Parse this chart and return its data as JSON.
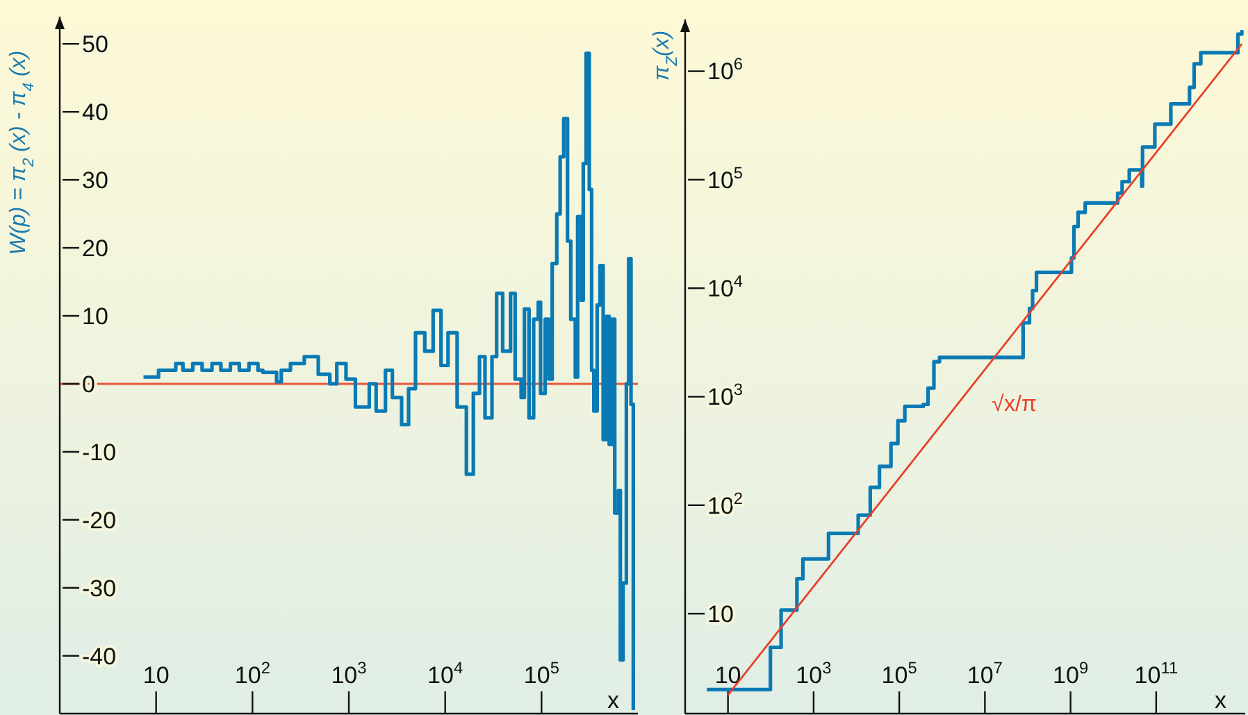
{
  "chart_data": [
    {
      "type": "step",
      "ylabel": "W(p) = π$_{2}$ (x) - π$_{4}$ (x)",
      "xlabel": "x",
      "log": "x",
      "grid": false,
      "marker": "none",
      "xlim": [
        1,
        1000000
      ],
      "ylim": [
        -48.5,
        54
      ],
      "xticks": [
        10,
        {
          "value": 100,
          "label": "10$^{2}$"
        },
        {
          "value": 1000,
          "label": "10$^{3}$"
        },
        {
          "value": 10000,
          "label": "10$^{4}$"
        },
        {
          "value": 100000,
          "label": "10$^{5}$"
        }
      ],
      "yticks": [
        -40,
        -30,
        -20,
        -10,
        0,
        10,
        20,
        30,
        40,
        50
      ],
      "ref_lines": [
        {
          "axis": "y",
          "value": 0,
          "color": "#e8553a"
        }
      ],
      "series": [
        {
          "color": "#0a7ab5",
          "x": [
            7.4,
            10.6,
            16,
            19,
            24,
            30,
            38,
            47,
            59,
            73,
            92,
            114,
            128,
            178,
            199,
            248,
            345,
            482,
            635,
            750,
            935,
            1170,
            1630,
            1920,
            2400,
            2830,
            3530,
            4170,
            4920,
            6140,
            7500,
            9050,
            10700,
            13300,
            16600,
            19600,
            22700,
            25900,
            30600,
            34200,
            39500,
            47700,
            53200,
            61400,
            66400,
            74200,
            82800,
            92500,
            97700,
            109000,
            119000,
            129000,
            144000,
            156000,
            170000,
            186000,
            201000,
            224000,
            237000,
            259000,
            271000,
            290000,
            313000,
            331000,
            349000,
            378000,
            404000,
            436000,
            471000,
            504000,
            544000,
            575000,
            628000,
            657000,
            702000,
            759000,
            802000,
            848000,
            896000
          ],
          "values": [
            1,
            2,
            3,
            2,
            3,
            2,
            3,
            2,
            3,
            2,
            3,
            2,
            1.7,
            0.3,
            2,
            3,
            4,
            1.4,
            0,
            3,
            0.7,
            -3.4,
            0,
            -4,
            2,
            -2,
            -6,
            -0.7,
            7.5,
            4.8,
            10.8,
            2.7,
            7.5,
            -3.4,
            -13.3,
            -1.4,
            4,
            -5,
            4,
            13.3,
            4.8,
            13.3,
            0.7,
            -2,
            11,
            -5,
            9.5,
            12,
            -1.4,
            9.5,
            0.7,
            17.7,
            25,
            33.4,
            39,
            21,
            9.5,
            1,
            24.6,
            12.3,
            32.4,
            48.6,
            28.6,
            2,
            -4,
            11.6,
            17.4,
            -8.2,
            9.9,
            -8.9,
            9.5,
            -19,
            -15.7,
            -40.6,
            -29.3,
            0,
            18.4,
            -3,
            -48
          ]
        }
      ]
    },
    {
      "type": "step",
      "ylabel": "π$_{Z}$(x)",
      "xlabel": "x",
      "log": "xy",
      "grid": false,
      "marker": "none",
      "xlim": [
        1,
        12000000000000
      ],
      "ylim": [
        1.2,
        3000000
      ],
      "xticks": [
        10,
        {
          "value": 1000,
          "label": "10$^{3}$"
        },
        {
          "value": 100000,
          "label": "10$^{5}$"
        },
        {
          "value": 10000000,
          "label": "10$^{7}$"
        },
        {
          "value": 1000000000,
          "label": "10$^{9}$"
        },
        {
          "value": 100000000000,
          "label": "10$^{11}$"
        }
      ],
      "yticks": [
        10,
        {
          "value": 100,
          "label": "10$^{2}$"
        },
        {
          "value": 1000,
          "label": "10$^{3}$"
        },
        {
          "value": 10000,
          "label": "10$^{4}$"
        },
        {
          "value": 100000,
          "label": "10$^{5}$"
        },
        {
          "value": 1000000,
          "label": "10$^{6}$"
        }
      ],
      "series": [
        {
          "color": "#0a7ab5",
          "x": [
            3.2,
            98,
            174,
            407,
            562,
            810,
            2230,
            11000,
            21000,
            34500,
            64000,
            93000,
            135000,
            365000,
            470000,
            645000,
            870000,
            78000000,
            110000000,
            130000000,
            160000000,
            1050000000,
            1200000000,
            1500000000,
            2200000000,
            12600000000,
            16000000000,
            23500000000,
            46000000000,
            48000000000,
            93000000000,
            220000000000,
            600000000000,
            770000000000,
            1100000000000,
            8100000000000,
            10000000000000
          ],
          "values": [
            2,
            4.9,
            10.8,
            21,
            32,
            32,
            55,
            81,
            146,
            228,
            370,
            600,
            815,
            850,
            1200,
            2100,
            2300,
            4800,
            6500,
            9500,
            14000,
            19000,
            37000,
            50000,
            61000,
            75000,
            96000,
            123000,
            87000,
            200000,
            325000,
            500000,
            710000,
            1170000,
            1480000,
            2200000,
            2400000
          ]
        },
        {
          "type": "line",
          "name": "√x/π",
          "color": "#e8402a",
          "x": [
            10,
            10000000000000
          ],
          "values": [
            1.78,
            1784000
          ]
        }
      ]
    }
  ]
}
